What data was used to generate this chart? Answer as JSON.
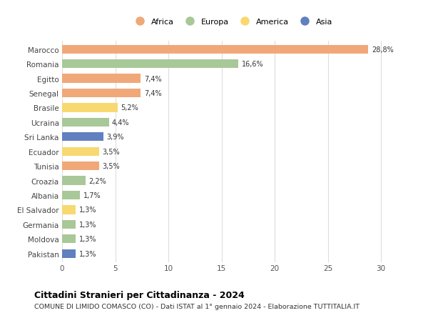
{
  "categories": [
    "Marocco",
    "Romania",
    "Egitto",
    "Senegal",
    "Brasile",
    "Ucraina",
    "Sri Lanka",
    "Ecuador",
    "Tunisia",
    "Croazia",
    "Albania",
    "El Salvador",
    "Germania",
    "Moldova",
    "Pakistan"
  ],
  "values": [
    28.8,
    16.6,
    7.4,
    7.4,
    5.2,
    4.4,
    3.9,
    3.5,
    3.5,
    2.2,
    1.7,
    1.3,
    1.3,
    1.3,
    1.3
  ],
  "labels": [
    "28,8%",
    "16,6%",
    "7,4%",
    "7,4%",
    "5,2%",
    "4,4%",
    "3,9%",
    "3,5%",
    "3,5%",
    "2,2%",
    "1,7%",
    "1,3%",
    "1,3%",
    "1,3%",
    "1,3%"
  ],
  "continents": [
    "Africa",
    "Europa",
    "Africa",
    "Africa",
    "America",
    "Europa",
    "Asia",
    "America",
    "Africa",
    "Europa",
    "Europa",
    "America",
    "Europa",
    "Europa",
    "Asia"
  ],
  "continent_colors": {
    "Africa": "#F0A878",
    "Europa": "#A8C898",
    "America": "#F8D870",
    "Asia": "#6080C0"
  },
  "legend_order": [
    "Africa",
    "Europa",
    "America",
    "Asia"
  ],
  "title": "Cittadini Stranieri per Cittadinanza - 2024",
  "subtitle": "COMUNE DI LIMIDO COMASCO (CO) - Dati ISTAT al 1° gennaio 2024 - Elaborazione TUTTITALIA.IT",
  "xlim": [
    0,
    32
  ],
  "xticks": [
    0,
    5,
    10,
    15,
    20,
    25,
    30
  ],
  "bg_color": "#ffffff",
  "grid_color": "#dddddd",
  "bar_height": 0.6
}
